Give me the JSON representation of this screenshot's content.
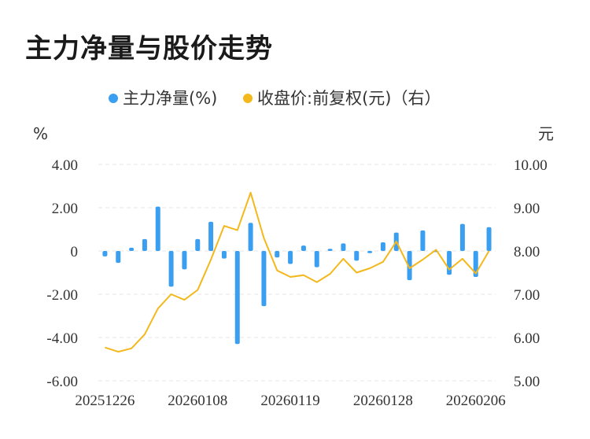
{
  "title": "主力净量与股价走势",
  "chart_data": {
    "type": "bar+line",
    "legend_position": "top-center",
    "grid": true,
    "left_axis_unit": "%",
    "right_axis_unit": "元",
    "left_ylim": [
      -6,
      4
    ],
    "right_ylim": [
      5,
      10
    ],
    "left_ticks": [
      "4.00",
      "2.00",
      "0",
      "-2.00",
      "-4.00",
      "-6.00"
    ],
    "right_ticks": [
      "10.00",
      "9.00",
      "8.00",
      "7.00",
      "6.00",
      "5.00"
    ],
    "x_tick_labels": [
      "20251226",
      "20260108",
      "20260119",
      "20260128",
      "20260206"
    ],
    "bar_color": "#3a9ff0",
    "line_color": "#f3b81b",
    "series": [
      {
        "name": "主力净量(%)",
        "type": "bar",
        "axis": "left",
        "values": [
          -0.25,
          -0.55,
          0.15,
          0.55,
          2.05,
          -1.65,
          -0.85,
          0.55,
          1.35,
          -0.35,
          -4.3,
          1.3,
          -2.55,
          -0.3,
          -0.6,
          0.25,
          -0.75,
          0.1,
          0.35,
          -0.45,
          -0.1,
          0.4,
          0.85,
          -1.35,
          0.95,
          -0.05,
          -1.1,
          1.25,
          -1.2,
          1.1
        ]
      },
      {
        "name": "收盘价:前复权(元)（右）",
        "type": "line",
        "axis": "right",
        "values": [
          5.77,
          5.67,
          5.75,
          6.07,
          6.67,
          7.0,
          6.87,
          7.1,
          7.8,
          8.58,
          8.48,
          9.35,
          8.3,
          7.55,
          7.4,
          7.44,
          7.28,
          7.47,
          7.82,
          7.5,
          7.6,
          7.75,
          8.22,
          7.6,
          7.8,
          8.03,
          7.57,
          7.82,
          7.48,
          8.0
        ]
      }
    ]
  }
}
